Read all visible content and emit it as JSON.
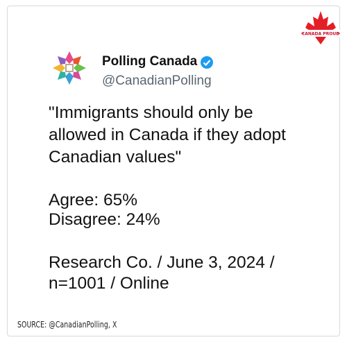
{
  "badge": "CANADA PROUD",
  "author": {
    "name": "Polling Canada",
    "handle": "@CanadianPolling"
  },
  "post": {
    "quote": "\"Immigrants should only be allowed in Canada if they adopt Canadian values\"",
    "agree": "Agree: 65%",
    "disagree": "Disagree: 24%",
    "research": "Research Co. / June 3, 2024 / n=1001 / Online"
  },
  "source": "SOURCE: @CanadianPolling, X"
}
